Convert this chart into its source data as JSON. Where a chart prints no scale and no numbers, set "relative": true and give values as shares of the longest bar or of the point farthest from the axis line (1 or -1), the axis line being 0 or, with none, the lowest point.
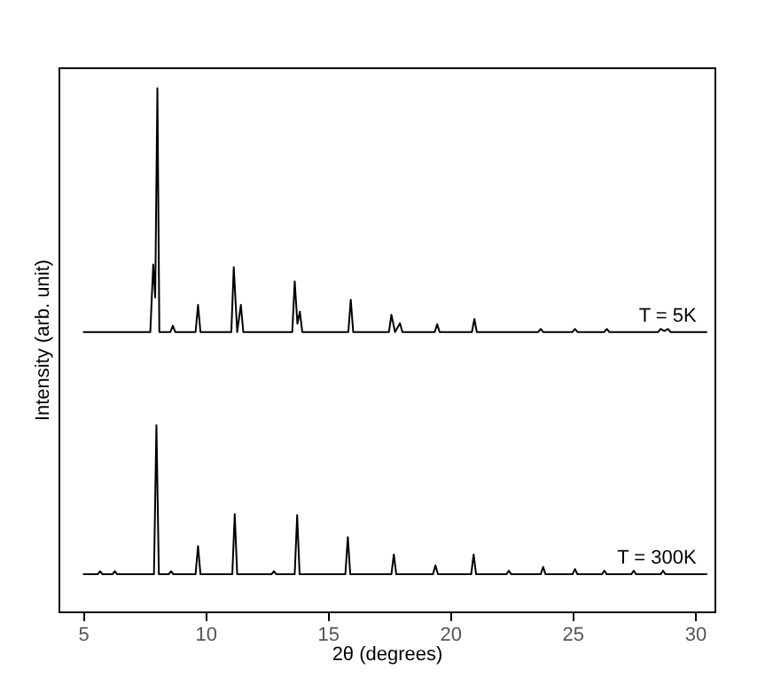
{
  "chart_data": {
    "type": "line",
    "relative": true,
    "xlabel": "2θ (degrees)",
    "ylabel": "Intensity (arb. unit)",
    "xlim": [
      4.0,
      30.8
    ],
    "xticks": [
      5,
      10,
      15,
      20,
      25,
      30
    ],
    "grid": false,
    "tick_labels": "x",
    "marker": "none",
    "line_style": "solid",
    "series": [
      {
        "name": "T = 5K",
        "color": "#000000",
        "x": [
          5.0,
          7.75,
          7.87,
          7.95,
          8.04,
          8.12,
          8.57,
          8.67,
          8.77,
          9.6,
          9.7,
          9.8,
          11.06,
          11.16,
          11.3,
          11.45,
          11.55,
          13.55,
          13.65,
          13.76,
          13.86,
          13.96,
          15.84,
          15.94,
          16.04,
          17.5,
          17.6,
          17.75,
          17.95,
          18.05,
          19.37,
          19.47,
          19.57,
          20.89,
          20.99,
          21.09,
          23.6,
          23.7,
          23.8,
          25.0,
          25.1,
          25.2,
          26.3,
          26.4,
          26.5,
          28.5,
          28.6,
          28.75,
          28.9,
          29.0,
          30.5
        ],
        "values": [
          0.534,
          0.534,
          0.663,
          0.6,
          1.0,
          0.534,
          0.534,
          0.546,
          0.534,
          0.534,
          0.586,
          0.534,
          0.534,
          0.658,
          0.534,
          0.586,
          0.534,
          0.534,
          0.631,
          0.55,
          0.573,
          0.534,
          0.534,
          0.596,
          0.534,
          0.534,
          0.567,
          0.534,
          0.551,
          0.534,
          0.534,
          0.549,
          0.534,
          0.534,
          0.559,
          0.534,
          0.534,
          0.54,
          0.534,
          0.534,
          0.54,
          0.534,
          0.534,
          0.54,
          0.534,
          0.534,
          0.54,
          0.536,
          0.54,
          0.534,
          0.534
        ]
      },
      {
        "name": "T = 300K",
        "color": "#000000",
        "x": [
          5.0,
          5.6,
          5.7,
          5.8,
          6.2,
          6.3,
          6.4,
          7.9,
          8.0,
          8.1,
          8.5,
          8.6,
          8.7,
          9.6,
          9.7,
          9.8,
          11.1,
          11.2,
          11.3,
          12.7,
          12.8,
          12.9,
          13.65,
          13.75,
          13.85,
          15.72,
          15.82,
          15.92,
          17.6,
          17.7,
          17.8,
          19.3,
          19.4,
          19.5,
          20.86,
          20.96,
          21.06,
          22.3,
          22.4,
          22.5,
          23.7,
          23.8,
          23.9,
          25.0,
          25.1,
          25.2,
          26.2,
          26.3,
          26.4,
          27.4,
          27.5,
          27.6,
          28.6,
          28.7,
          28.8,
          30.5
        ],
        "values": [
          0.071,
          0.071,
          0.077,
          0.071,
          0.071,
          0.077,
          0.071,
          0.071,
          0.356,
          0.071,
          0.071,
          0.077,
          0.071,
          0.071,
          0.125,
          0.071,
          0.071,
          0.186,
          0.071,
          0.071,
          0.077,
          0.071,
          0.071,
          0.184,
          0.071,
          0.071,
          0.142,
          0.071,
          0.071,
          0.109,
          0.071,
          0.071,
          0.088,
          0.071,
          0.071,
          0.109,
          0.071,
          0.071,
          0.078,
          0.071,
          0.071,
          0.085,
          0.071,
          0.071,
          0.081,
          0.071,
          0.071,
          0.078,
          0.071,
          0.071,
          0.078,
          0.071,
          0.071,
          0.078,
          0.071,
          0.071
        ]
      }
    ]
  }
}
